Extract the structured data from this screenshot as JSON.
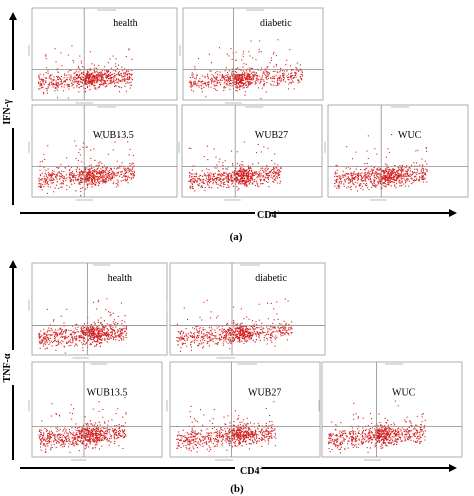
{
  "chart_data": [
    {
      "type": "scatter",
      "panel": "(a)",
      "xlabel": "CD4",
      "ylabel": "IFN-γ",
      "plots": [
        {
          "label": "health"
        },
        {
          "label": "diabetic"
        },
        {
          "label": "WUB13.5"
        },
        {
          "label": "WUB27"
        },
        {
          "label": "WUC"
        }
      ]
    },
    {
      "type": "scatter",
      "panel": "(b)",
      "xlabel": "CD4",
      "ylabel": "TNF-α",
      "plots": [
        {
          "label": "health"
        },
        {
          "label": "diabetic"
        },
        {
          "label": "WUB13.5"
        },
        {
          "label": "WUB27"
        },
        {
          "label": "WUC"
        }
      ]
    }
  ],
  "colors": {
    "dots": "#d42020",
    "frame": "#9a9a9a",
    "gate": "#8c8c8c",
    "arrow": "#000000"
  }
}
